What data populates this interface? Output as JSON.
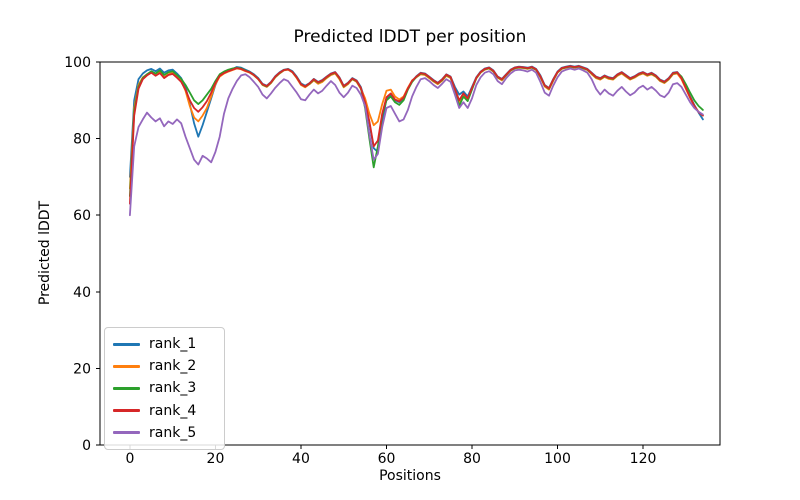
{
  "figure": {
    "title": "Predicted lDDT per position",
    "xlabel": "Positions",
    "ylabel": "Predicted lDDT"
  },
  "chart_data": {
    "type": "line",
    "title": "Predicted lDDT per position",
    "xlabel": "Positions",
    "ylabel": "Predicted lDDT",
    "x_start": 0,
    "x_step": 1,
    "xlim": [
      -7,
      138
    ],
    "ylim": [
      0,
      100
    ],
    "xticks": [
      0,
      20,
      40,
      60,
      80,
      100,
      120
    ],
    "yticks": [
      0,
      20,
      40,
      60,
      80,
      100
    ],
    "grid": false,
    "legend_position": "lower left",
    "axis_color": "#000000",
    "series": [
      {
        "name": "rank_1",
        "color": "#1f77b4",
        "values": [
          70.0,
          90.0,
          95.5,
          97.0,
          97.8,
          98.2,
          97.6,
          98.3,
          97.2,
          97.8,
          98.0,
          97.0,
          95.8,
          93.5,
          89.0,
          84.0,
          80.5,
          83.5,
          87.0,
          90.5,
          94.0,
          96.5,
          97.3,
          97.8,
          98.2,
          98.7,
          98.5,
          98.0,
          97.5,
          96.8,
          95.8,
          94.3,
          93.8,
          94.8,
          96.3,
          97.3,
          98.0,
          98.2,
          97.6,
          96.2,
          94.4,
          93.8,
          94.5,
          95.6,
          94.8,
          95.3,
          96.2,
          97.0,
          97.4,
          96.0,
          93.8,
          94.6,
          95.8,
          95.2,
          93.5,
          90.0,
          84.0,
          77.5,
          76.5,
          84.0,
          90.5,
          91.5,
          90.0,
          89.5,
          90.5,
          93.0,
          95.0,
          96.3,
          97.2,
          97.0,
          96.2,
          95.3,
          94.6,
          95.5,
          96.8,
          96.2,
          93.5,
          91.5,
          92.3,
          91.0,
          93.5,
          96.0,
          97.5,
          98.3,
          98.6,
          97.8,
          96.2,
          95.6,
          96.8,
          98.0,
          98.6,
          98.8,
          98.7,
          98.5,
          98.8,
          98.2,
          96.5,
          94.0,
          93.2,
          95.5,
          97.5,
          98.5,
          98.8,
          99.0,
          98.8,
          99.0,
          98.6,
          98.2,
          97.2,
          96.2,
          95.8,
          96.5,
          96.0,
          95.8,
          96.8,
          97.4,
          96.6,
          95.8,
          96.3,
          97.0,
          97.4,
          96.8,
          97.2,
          96.5,
          95.4,
          94.9,
          95.8,
          97.2,
          97.4,
          96.0,
          93.5,
          91.0,
          88.8,
          86.8,
          85.0
        ]
      },
      {
        "name": "rank_2",
        "color": "#ff7f0e",
        "values": [
          67.0,
          88.0,
          94.0,
          96.0,
          96.8,
          97.4,
          96.6,
          97.3,
          96.0,
          96.8,
          97.2,
          96.2,
          95.0,
          92.5,
          88.5,
          85.5,
          84.5,
          86.0,
          88.0,
          91.0,
          94.2,
          96.2,
          97.0,
          97.5,
          97.9,
          98.3,
          98.1,
          97.6,
          97.2,
          96.5,
          95.5,
          94.0,
          93.5,
          94.5,
          96.0,
          97.0,
          97.8,
          98.0,
          97.3,
          95.8,
          94.0,
          93.4,
          94.2,
          95.2,
          94.3,
          94.8,
          95.8,
          96.6,
          97.0,
          95.5,
          93.4,
          94.2,
          95.5,
          94.8,
          93.0,
          90.5,
          86.5,
          83.5,
          84.5,
          89.0,
          92.5,
          92.8,
          91.0,
          90.2,
          91.0,
          93.3,
          95.2,
          96.0,
          96.8,
          96.6,
          95.8,
          94.9,
          94.2,
          95.1,
          96.4,
          95.8,
          92.8,
          89.5,
          91.5,
          90.2,
          93.0,
          95.7,
          97.2,
          98.0,
          98.3,
          97.5,
          95.9,
          95.2,
          96.5,
          97.7,
          98.3,
          98.5,
          98.4,
          98.2,
          98.5,
          97.9,
          96.0,
          93.6,
          92.8,
          95.1,
          97.2,
          98.2,
          98.5,
          98.7,
          98.5,
          98.7,
          98.3,
          97.9,
          96.8,
          95.8,
          95.4,
          96.1,
          95.6,
          95.4,
          96.4,
          97.0,
          96.2,
          95.4,
          95.9,
          96.6,
          97.0,
          96.4,
          96.8,
          96.1,
          95.0,
          94.5,
          95.4,
          96.8,
          97.0,
          95.5,
          93.0,
          90.6,
          88.5,
          87.0,
          86.0
        ]
      },
      {
        "name": "rank_3",
        "color": "#2ca02c",
        "values": [
          65.0,
          87.0,
          93.5,
          95.8,
          96.8,
          97.6,
          97.0,
          97.8,
          96.6,
          97.3,
          97.6,
          96.6,
          95.6,
          94.0,
          92.0,
          90.0,
          89.0,
          90.0,
          91.5,
          93.0,
          95.0,
          96.8,
          97.5,
          98.0,
          98.3,
          98.5,
          98.3,
          97.8,
          97.3,
          96.6,
          95.6,
          94.1,
          93.6,
          94.6,
          96.1,
          97.1,
          97.9,
          98.1,
          97.4,
          96.0,
          94.2,
          93.6,
          94.3,
          95.4,
          94.6,
          95.1,
          96.0,
          96.8,
          97.2,
          95.8,
          93.6,
          94.4,
          95.6,
          95.0,
          93.2,
          88.0,
          80.0,
          72.5,
          78.0,
          86.0,
          90.0,
          91.0,
          89.5,
          88.8,
          90.0,
          92.8,
          94.8,
          96.1,
          97.0,
          96.8,
          96.0,
          95.1,
          94.4,
          95.3,
          96.6,
          96.0,
          92.5,
          88.5,
          91.0,
          89.8,
          92.8,
          95.8,
          97.3,
          98.1,
          98.4,
          97.6,
          96.0,
          95.4,
          96.6,
          97.8,
          98.4,
          98.6,
          98.5,
          98.3,
          98.6,
          98.0,
          96.2,
          93.8,
          93.0,
          95.3,
          97.3,
          98.3,
          98.6,
          98.8,
          98.6,
          98.8,
          98.4,
          98.0,
          97.0,
          96.0,
          95.6,
          96.3,
          95.8,
          95.6,
          96.6,
          97.2,
          96.4,
          95.6,
          96.1,
          96.8,
          97.2,
          96.6,
          97.0,
          96.3,
          95.2,
          94.7,
          95.6,
          97.0,
          97.2,
          96.2,
          94.2,
          92.0,
          90.0,
          88.5,
          87.5
        ]
      },
      {
        "name": "rank_4",
        "color": "#d62728",
        "values": [
          63.0,
          86.0,
          93.0,
          95.5,
          96.5,
          97.2,
          96.4,
          97.1,
          95.8,
          96.6,
          96.9,
          95.9,
          94.8,
          92.8,
          90.0,
          88.0,
          87.0,
          88.2,
          89.8,
          92.0,
          94.5,
          96.4,
          97.1,
          97.6,
          98.0,
          98.4,
          98.2,
          97.7,
          97.3,
          96.6,
          95.6,
          94.2,
          93.7,
          94.7,
          96.2,
          97.2,
          97.9,
          98.1,
          97.4,
          96.0,
          94.2,
          93.6,
          94.4,
          95.5,
          94.7,
          95.2,
          96.1,
          96.9,
          97.3,
          95.9,
          93.7,
          94.5,
          95.7,
          95.1,
          93.3,
          89.5,
          84.5,
          78.0,
          79.5,
          86.5,
          90.8,
          91.8,
          90.2,
          89.7,
          90.7,
          93.1,
          95.1,
          96.2,
          97.1,
          96.9,
          96.1,
          95.2,
          94.5,
          95.4,
          96.7,
          96.1,
          93.0,
          90.0,
          91.8,
          90.5,
          93.2,
          95.9,
          97.4,
          98.2,
          98.5,
          97.7,
          96.1,
          95.5,
          96.7,
          97.9,
          98.5,
          98.7,
          98.6,
          98.4,
          98.7,
          98.1,
          96.3,
          93.9,
          93.1,
          95.4,
          97.4,
          98.4,
          98.7,
          98.9,
          98.7,
          98.9,
          98.5,
          98.1,
          97.1,
          96.1,
          95.7,
          96.4,
          95.9,
          95.7,
          96.7,
          97.3,
          96.5,
          95.7,
          96.2,
          96.9,
          97.3,
          96.7,
          97.1,
          96.4,
          95.3,
          94.8,
          95.7,
          97.1,
          97.3,
          95.8,
          93.3,
          90.8,
          88.6,
          86.9,
          86.0
        ]
      },
      {
        "name": "rank_5",
        "color": "#9467bd",
        "values": [
          60.0,
          78.0,
          83.0,
          85.0,
          86.8,
          85.5,
          84.5,
          85.3,
          83.2,
          84.5,
          83.8,
          85.0,
          84.0,
          80.5,
          77.5,
          74.5,
          73.2,
          75.5,
          74.8,
          73.8,
          76.5,
          80.5,
          86.5,
          90.5,
          93.0,
          95.0,
          96.5,
          96.8,
          96.0,
          94.8,
          93.5,
          91.5,
          90.5,
          91.8,
          93.3,
          94.5,
          95.5,
          95.0,
          93.5,
          92.0,
          90.3,
          90.0,
          91.5,
          92.8,
          91.8,
          92.5,
          93.8,
          95.0,
          94.0,
          92.0,
          90.8,
          92.0,
          93.8,
          93.2,
          91.5,
          88.5,
          81.0,
          74.5,
          76.0,
          83.0,
          88.0,
          88.5,
          86.5,
          84.5,
          85.0,
          87.5,
          91.0,
          93.5,
          95.5,
          95.8,
          95.0,
          94.0,
          93.2,
          94.3,
          95.5,
          94.8,
          91.5,
          88.0,
          89.5,
          88.0,
          90.5,
          94.0,
          96.0,
          97.2,
          97.6,
          96.8,
          95.0,
          94.2,
          95.8,
          97.0,
          97.8,
          98.0,
          97.8,
          97.5,
          98.0,
          97.2,
          94.8,
          92.0,
          91.2,
          93.8,
          96.0,
          97.5,
          98.0,
          98.3,
          98.0,
          98.3,
          97.8,
          97.2,
          95.5,
          93.0,
          91.5,
          92.8,
          91.8,
          91.2,
          92.5,
          93.5,
          92.3,
          91.3,
          92.0,
          93.2,
          93.8,
          92.8,
          93.5,
          92.5,
          91.3,
          90.8,
          92.0,
          94.2,
          94.5,
          93.5,
          91.5,
          89.5,
          88.0,
          87.0,
          86.3
        ]
      }
    ]
  }
}
